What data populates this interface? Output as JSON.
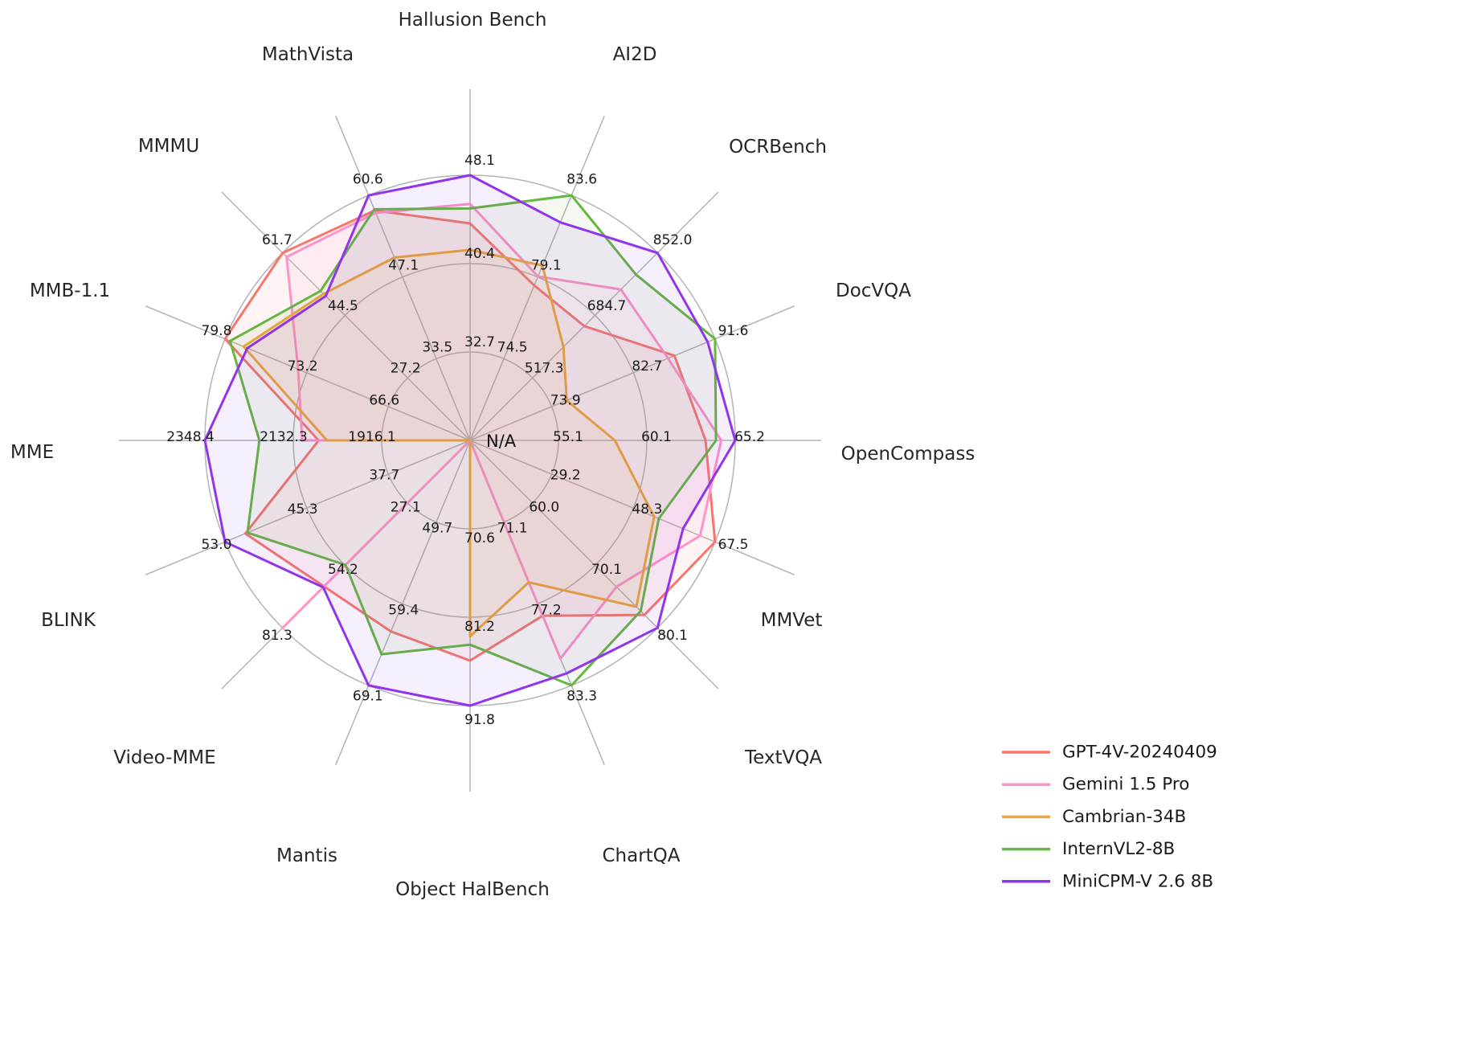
{
  "chart_data": {
    "type": "radar",
    "title": "",
    "center_label": "N/A",
    "grid": {
      "rings": 3,
      "color": "#b3b3b3",
      "radial_lines": 16
    },
    "legend": {
      "position": "bottom-right"
    },
    "axes": [
      {
        "label": "Hallusion Bench",
        "tick_labels": [
          "32.7",
          "40.4",
          "48.1"
        ],
        "min": 25.0,
        "max": 48.1
      },
      {
        "label": "AI2D",
        "tick_labels": [
          "74.5",
          "79.1",
          "83.6"
        ],
        "min": 70.0,
        "max": 83.6
      },
      {
        "label": "OCRBench",
        "tick_labels": [
          "517.3",
          "684.7",
          "852.0"
        ],
        "min": 350.0,
        "max": 852.0
      },
      {
        "label": "DocVQA",
        "tick_labels": [
          "73.9",
          "82.7",
          "91.6"
        ],
        "min": 65.0,
        "max": 91.6
      },
      {
        "label": "OpenCompass",
        "tick_labels": [
          "55.1",
          "60.1",
          "65.2"
        ],
        "min": 50.0,
        "max": 65.2
      },
      {
        "label": "MMVet",
        "tick_labels": [
          "29.2",
          "48.3",
          "67.5"
        ],
        "min": 10.0,
        "max": 67.5
      },
      {
        "label": "TextVQA",
        "tick_labels": [
          "60.0",
          "70.1",
          "80.1"
        ],
        "min": 50.0,
        "max": 80.1
      },
      {
        "label": "ChartQA",
        "tick_labels": [
          "71.1",
          "77.2",
          "83.3"
        ],
        "min": 65.0,
        "max": 83.3
      },
      {
        "label": "Object HalBench",
        "tick_labels": [
          "70.6",
          "81.2",
          "91.8"
        ],
        "min": 60.0,
        "max": 91.8
      },
      {
        "label": "Mantis",
        "tick_labels": [
          "49.7",
          "59.4",
          "69.1"
        ],
        "min": 40.0,
        "max": 69.1
      },
      {
        "label": "Video-MME",
        "tick_labels": [
          "27.1",
          "54.2",
          "81.3"
        ],
        "min": 0.0,
        "max": 81.3
      },
      {
        "label": "BLINK",
        "tick_labels": [
          "37.7",
          "45.3",
          "53.0"
        ],
        "min": 30.0,
        "max": 53.0
      },
      {
        "label": "MME",
        "tick_labels": [
          "1916.1",
          "2132.3",
          "2348.4"
        ],
        "min": 1700.0,
        "max": 2348.4
      },
      {
        "label": "MMB-1.1",
        "tick_labels": [
          "66.6",
          "73.2",
          "79.8"
        ],
        "min": 60.0,
        "max": 79.8
      },
      {
        "label": "MMMU",
        "tick_labels": [
          "27.2",
          "44.5",
          "61.7"
        ],
        "min": 10.0,
        "max": 61.7
      },
      {
        "label": "MathVista",
        "tick_labels": [
          "33.5",
          "47.1",
          "60.6"
        ],
        "min": 20.0,
        "max": 60.6
      }
    ],
    "series": [
      {
        "name": "GPT-4V-20240409",
        "color": "#F8766D",
        "values": [
          43.9,
          78.6,
          656,
          87.2,
          63.5,
          67.5,
          78.0,
          78.1,
          86.4,
          62.7,
          63.3,
          51.1,
          2070.2,
          79.8,
          61.7,
          58.1
        ]
      },
      {
        "name": "Gemini 1.5 Pro",
        "color": "#FF93C9",
        "values": [
          45.6,
          79.1,
          754,
          86.5,
          64.4,
          64.0,
          73.5,
          81.3,
          null,
          null,
          81.3,
          null,
          2110.6,
          73.9,
          60.6,
          57.7
        ]
      },
      {
        "name": "Cambrian-34B",
        "color": "#F2A33A",
        "values": [
          41.6,
          79.7,
          600,
          75.5,
          58.3,
          53.2,
          76.7,
          75.6,
          83.5,
          null,
          null,
          null,
          2049.9,
          78.3,
          50.4,
          50.3
        ]
      },
      {
        "name": "InternVL2-8B",
        "color": "#65B642",
        "values": [
          45.2,
          83.6,
          794,
          91.6,
          64.1,
          54.3,
          77.4,
          83.3,
          84.5,
          65.4,
          54.0,
          50.9,
          2215.1,
          79.4,
          51.2,
          58.3
        ]
      },
      {
        "name": "MiniCPM-V 2.6 8B",
        "color": "#9234EB",
        "values": [
          48.1,
          82.1,
          852,
          90.8,
          65.2,
          60.0,
          80.1,
          82.4,
          91.8,
          69.1,
          63.7,
          53.0,
          2348.4,
          78.0,
          49.8,
          60.6
        ]
      }
    ]
  }
}
